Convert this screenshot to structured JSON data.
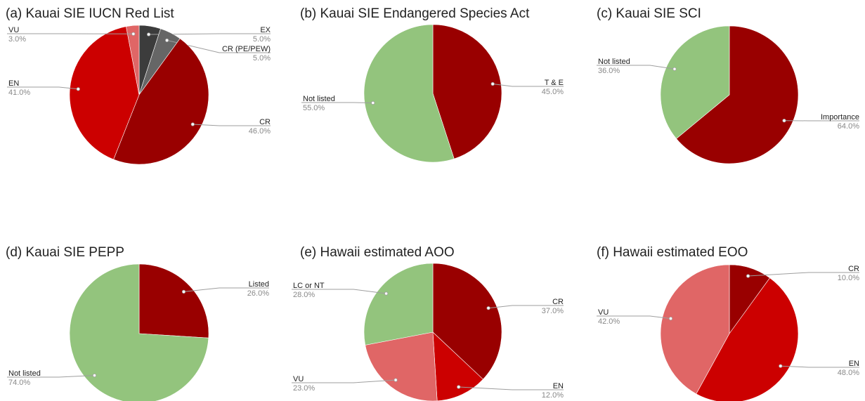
{
  "chart_data": [
    {
      "type": "pie",
      "title": "(a) Kauai SIE IUCN Red List",
      "slices": [
        {
          "label": "EX",
          "value": 5.0,
          "value_label": "5.0%",
          "color": "#3c3c3c"
        },
        {
          "label": "CR (PE/PEW)",
          "value": 5.0,
          "value_label": "5.0%",
          "color": "#666666"
        },
        {
          "label": "CR",
          "value": 46.0,
          "value_label": "46.0%",
          "color": "#990000"
        },
        {
          "label": "EN",
          "value": 41.0,
          "value_label": "41.0%",
          "color": "#cc0000"
        },
        {
          "label": "VU",
          "value": 3.0,
          "value_label": "3.0%",
          "color": "#e06666"
        }
      ]
    },
    {
      "type": "pie",
      "title": "(b) Kauai SIE Endangered Species Act",
      "slices": [
        {
          "label": "T & E",
          "value": 45.0,
          "value_label": "45.0%",
          "color": "#990000"
        },
        {
          "label": "Not listed",
          "value": 55.0,
          "value_label": "55.0%",
          "color": "#93c47d"
        }
      ]
    },
    {
      "type": "pie",
      "title": "(c) Kauai SIE SCI",
      "slices": [
        {
          "label": "Importance",
          "value": 64.0,
          "value_label": "64.0%",
          "color": "#990000"
        },
        {
          "label": "Not listed",
          "value": 36.0,
          "value_label": "36.0%",
          "color": "#93c47d"
        }
      ]
    },
    {
      "type": "pie",
      "title": "(d) Kauai SIE PEPP",
      "slices": [
        {
          "label": "Listed",
          "value": 26.0,
          "value_label": "26.0%",
          "color": "#990000"
        },
        {
          "label": "Not listed",
          "value": 74.0,
          "value_label": "74.0%",
          "color": "#93c47d"
        }
      ]
    },
    {
      "type": "pie",
      "title": "(e) Hawaii estimated AOO",
      "slices": [
        {
          "label": "CR",
          "value": 37.0,
          "value_label": "37.0%",
          "color": "#990000"
        },
        {
          "label": "EN",
          "value": 12.0,
          "value_label": "12.0%",
          "color": "#cc0000"
        },
        {
          "label": "VU",
          "value": 23.0,
          "value_label": "23.0%",
          "color": "#e06666"
        },
        {
          "label": "LC or NT",
          "value": 28.0,
          "value_label": "28.0%",
          "color": "#93c47d"
        }
      ]
    },
    {
      "type": "pie",
      "title": "(f) Hawaii estimated EOO",
      "slices": [
        {
          "label": "CR",
          "value": 10.0,
          "value_label": "10.0%",
          "color": "#990000"
        },
        {
          "label": "EN",
          "value": 48.0,
          "value_label": "48.0%",
          "color": "#cc0000"
        },
        {
          "label": "VU",
          "value": 42.0,
          "value_label": "42.0%",
          "color": "#e06666"
        }
      ]
    }
  ]
}
